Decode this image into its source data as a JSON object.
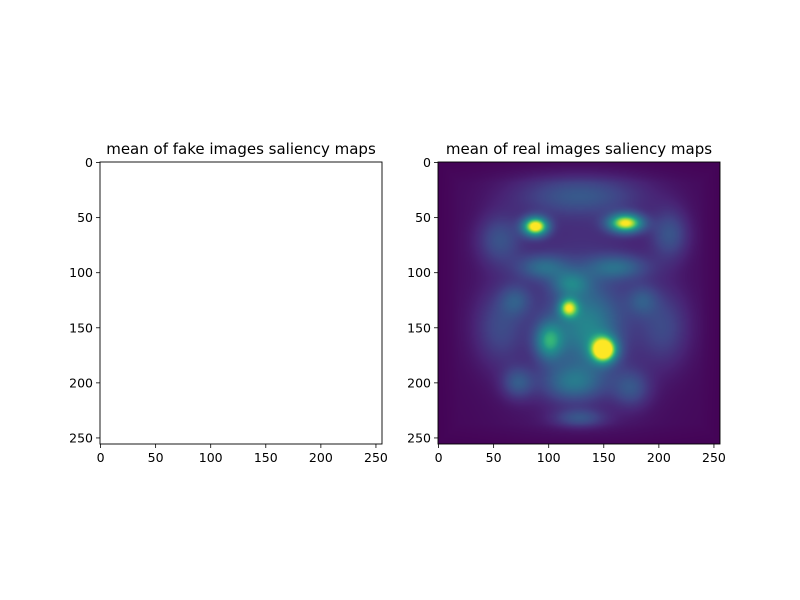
{
  "chart_data": [
    {
      "type": "heatmap",
      "title": "mean of fake images saliency maps",
      "xlabel": "",
      "ylabel": "",
      "xlim": [
        0,
        255
      ],
      "ylim": [
        255,
        0
      ],
      "xticks": [
        0,
        50,
        100,
        150,
        200,
        250
      ],
      "yticks": [
        0,
        50,
        100,
        150,
        200,
        250
      ],
      "image_size": [
        256,
        256
      ],
      "content": "blank",
      "colormap": "none"
    },
    {
      "type": "heatmap",
      "title": "mean of real images saliency maps",
      "xlabel": "",
      "ylabel": "",
      "xlim": [
        0,
        255
      ],
      "ylim": [
        255,
        0
      ],
      "xticks": [
        0,
        50,
        100,
        150,
        200,
        250
      ],
      "yticks": [
        0,
        50,
        100,
        150,
        200,
        250
      ],
      "image_size": [
        256,
        256
      ],
      "colormap": "viridis",
      "background_level": 0.02,
      "blobs": [
        {
          "x": 88,
          "y": 58,
          "sx": 8,
          "sy": 6,
          "v": 0.98
        },
        {
          "x": 170,
          "y": 55,
          "sx": 11,
          "sy": 6,
          "v": 0.9
        },
        {
          "x": 150,
          "y": 170,
          "sx": 8,
          "sy": 8,
          "v": 1.0
        },
        {
          "x": 118,
          "y": 132,
          "sx": 6,
          "sy": 6,
          "v": 0.62
        },
        {
          "x": 100,
          "y": 162,
          "sx": 9,
          "sy": 12,
          "v": 0.5
        },
        {
          "x": 135,
          "y": 150,
          "sx": 22,
          "sy": 26,
          "v": 0.4
        },
        {
          "x": 122,
          "y": 200,
          "sx": 20,
          "sy": 12,
          "v": 0.34
        },
        {
          "x": 128,
          "y": 232,
          "sx": 16,
          "sy": 6,
          "v": 0.24
        },
        {
          "x": 72,
          "y": 200,
          "sx": 10,
          "sy": 10,
          "v": 0.26
        },
        {
          "x": 175,
          "y": 205,
          "sx": 12,
          "sy": 12,
          "v": 0.24
        },
        {
          "x": 95,
          "y": 95,
          "sx": 16,
          "sy": 8,
          "v": 0.3
        },
        {
          "x": 162,
          "y": 95,
          "sx": 20,
          "sy": 8,
          "v": 0.3
        },
        {
          "x": 55,
          "y": 70,
          "sx": 14,
          "sy": 16,
          "v": 0.24
        },
        {
          "x": 210,
          "y": 65,
          "sx": 12,
          "sy": 16,
          "v": 0.26
        },
        {
          "x": 128,
          "y": 30,
          "sx": 40,
          "sy": 12,
          "v": 0.22
        },
        {
          "x": 55,
          "y": 150,
          "sx": 16,
          "sy": 24,
          "v": 0.2
        },
        {
          "x": 205,
          "y": 150,
          "sx": 16,
          "sy": 24,
          "v": 0.2
        },
        {
          "x": 128,
          "y": 112,
          "sx": 55,
          "sy": 90,
          "v": 0.16
        },
        {
          "x": 120,
          "y": 110,
          "sx": 12,
          "sy": 8,
          "v": 0.3
        },
        {
          "x": 70,
          "y": 125,
          "sx": 10,
          "sy": 10,
          "v": 0.2
        },
        {
          "x": 185,
          "y": 125,
          "sx": 10,
          "sy": 10,
          "v": 0.2
        }
      ]
    }
  ]
}
